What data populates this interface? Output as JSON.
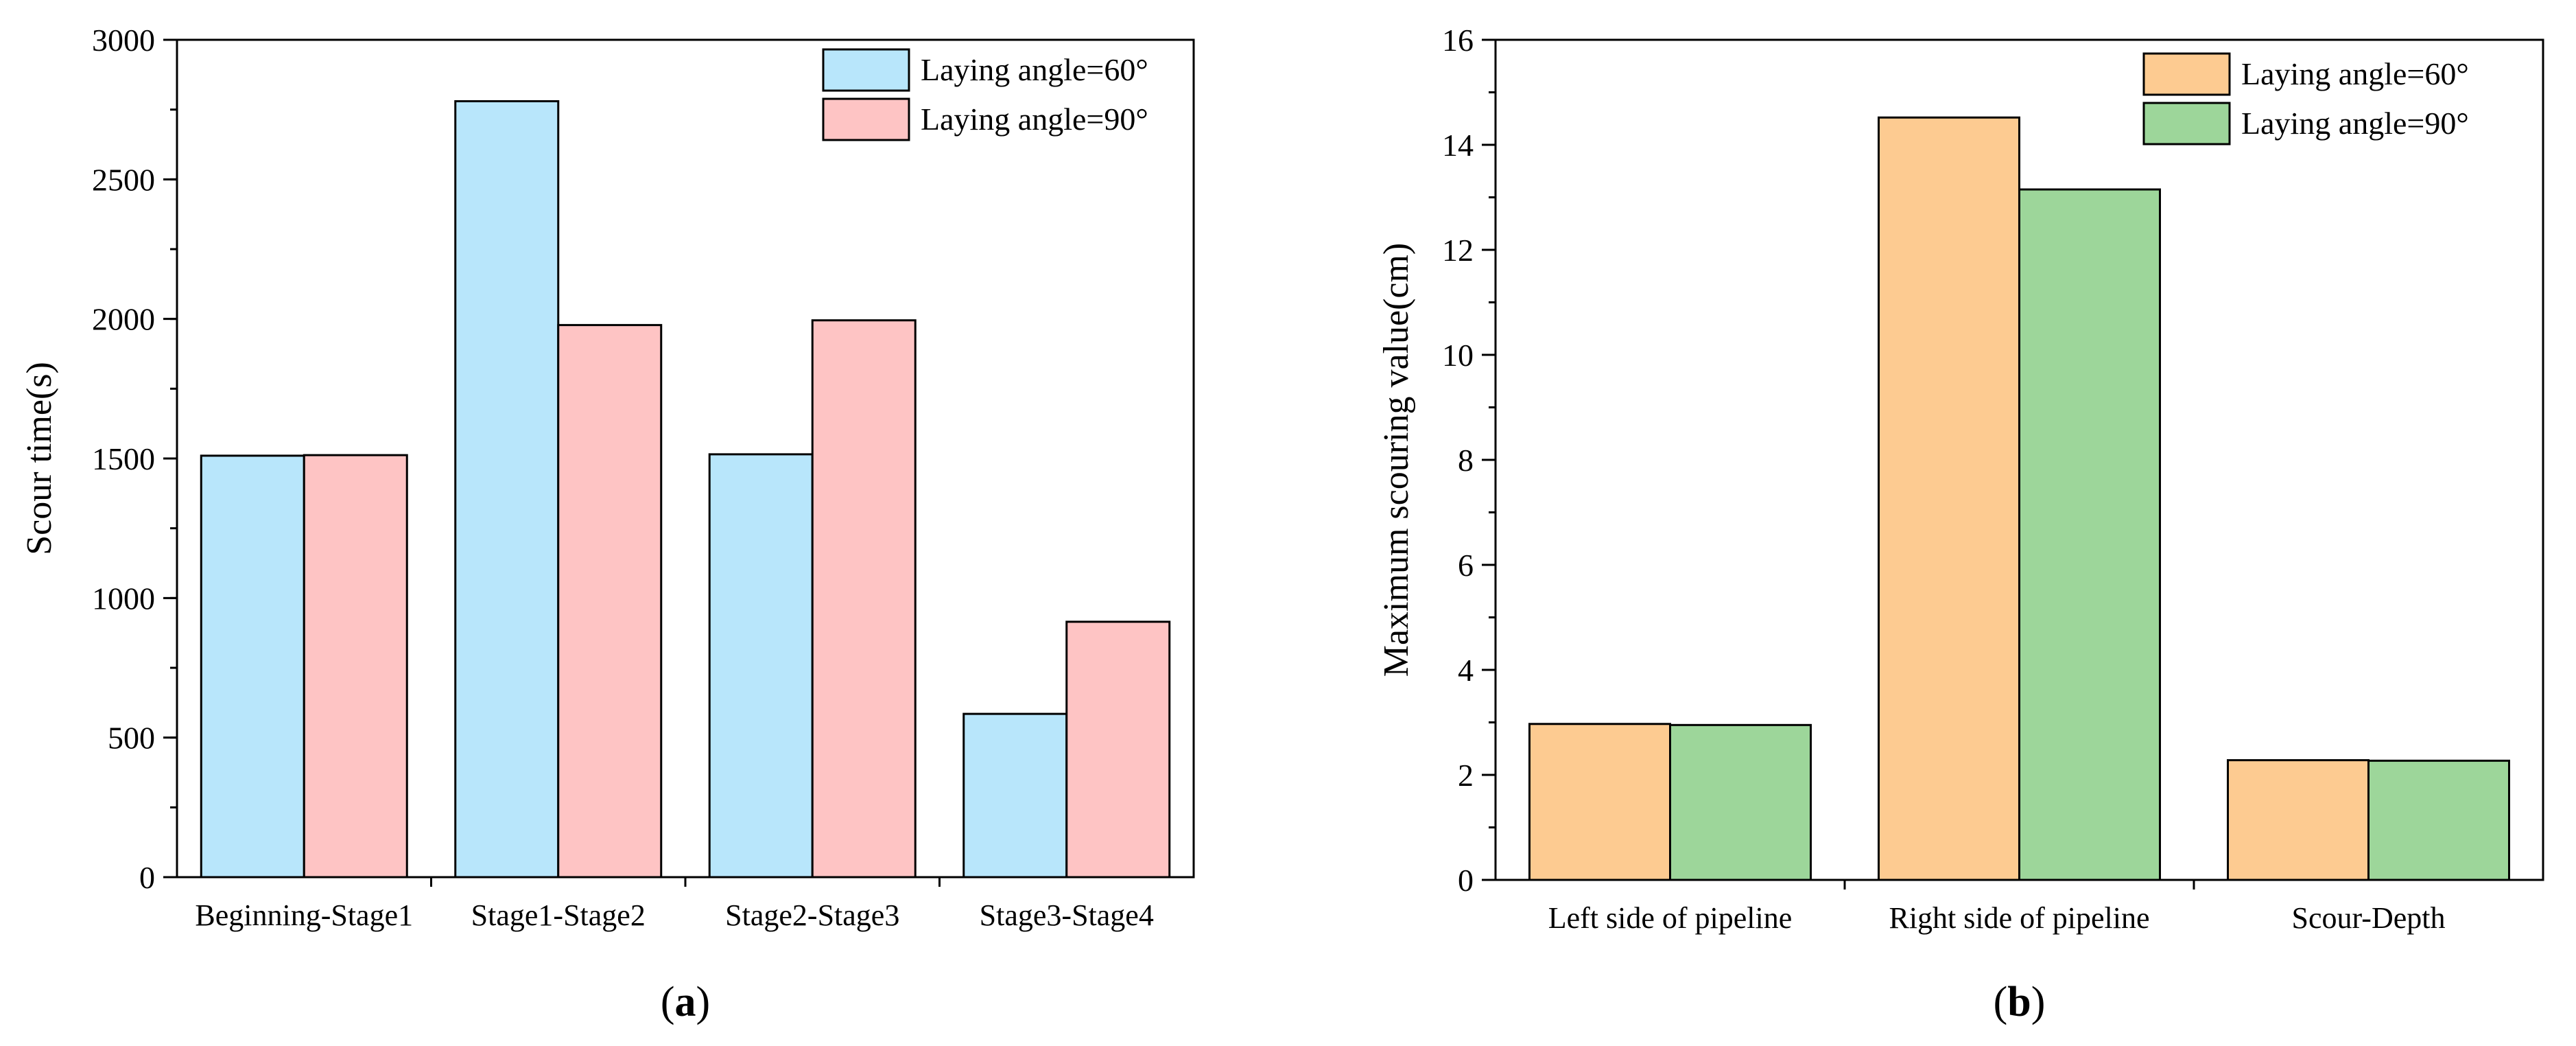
{
  "chart_data": [
    {
      "type": "bar",
      "panel_label": "(a)",
      "panel_letter": "a",
      "ylabel": "Scour time(s)",
      "xlabel": "",
      "ylim": [
        0,
        3000
      ],
      "yticks": [
        0,
        500,
        1000,
        1500,
        2000,
        2500,
        3000
      ],
      "ytick_labels": [
        "0",
        "500",
        "1000",
        "1500",
        "2000",
        "2500",
        "3000"
      ],
      "minor_tick_step": 250,
      "categories": [
        "Beginning-Stage1",
        "Stage1-Stage2",
        "Stage2-Stage3",
        "Stage3-Stage4"
      ],
      "series": [
        {
          "name": "Laying angle=60°",
          "color": "#b8e6fb",
          "values": [
            1510,
            2780,
            1515,
            585
          ]
        },
        {
          "name": "Laying angle=90°",
          "color": "#fec4c4",
          "values": [
            1512,
            1978,
            1995,
            915
          ]
        }
      ],
      "legend_position": "top-right",
      "grid": false
    },
    {
      "type": "bar",
      "panel_label": "(b)",
      "panel_letter": "b",
      "ylabel": "Maximum scouring value(cm)",
      "xlabel": "",
      "ylim": [
        0,
        16
      ],
      "yticks": [
        0,
        2,
        4,
        6,
        8,
        10,
        12,
        14,
        16
      ],
      "ytick_labels": [
        "0",
        "2",
        "4",
        "6",
        "8",
        "10",
        "12",
        "14",
        "16"
      ],
      "minor_tick_step": 1,
      "categories": [
        "Left side of pipeline",
        "Right side of pipeline",
        "Scour-Depth"
      ],
      "series": [
        {
          "name": "Laying angle=60°",
          "color": "#fdcb91",
          "values": [
            2.97,
            14.52,
            2.28
          ]
        },
        {
          "name": "Laying angle=90°",
          "color": "#9dd69a",
          "values": [
            2.95,
            13.15,
            2.27
          ]
        }
      ],
      "legend_position": "top-right",
      "grid": false
    }
  ]
}
